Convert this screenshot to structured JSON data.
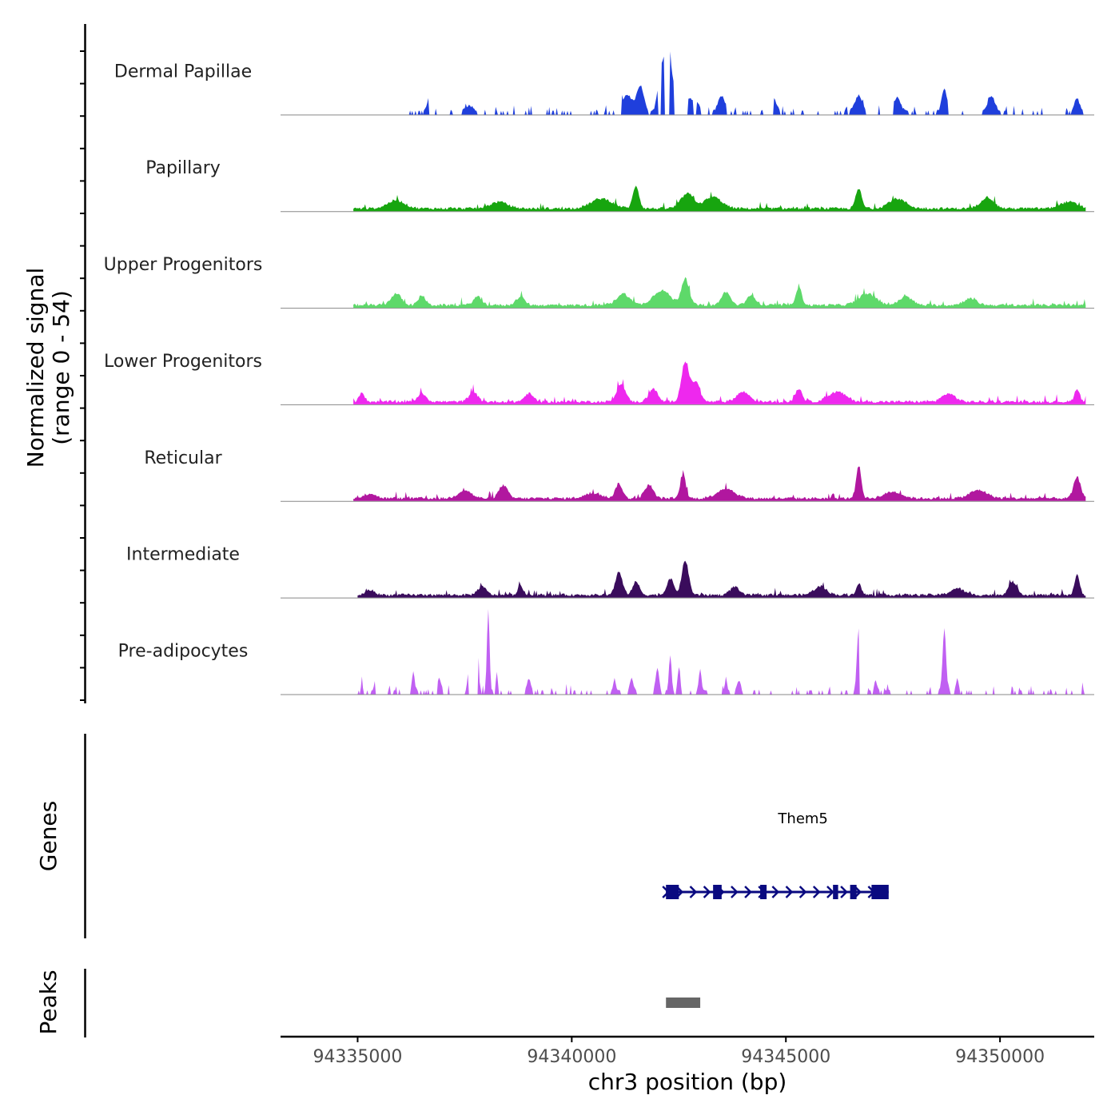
{
  "chart_data": {
    "type": "area",
    "ylabel_line1": "Normalized signal",
    "ylabel_line2": "(range 0 - 54)",
    "y_range": [
      0,
      54
    ],
    "xlabel": "chr3 position (bp)",
    "x_range": [
      94333200,
      94352200
    ],
    "x_ticks": [
      94335000,
      94340000,
      94345000,
      94350000
    ],
    "x_tick_labels": [
      "94335000",
      "94340000",
      "94345000",
      "94350000"
    ],
    "series": [
      {
        "name": "Dermal Papillae",
        "color": "#1f3fdc",
        "signal_start": 94336200,
        "signal_end": 94352000,
        "sparse": 0.45,
        "peaks": [
          [
            94336700,
            12,
            60
          ],
          [
            94337600,
            4,
            90
          ],
          [
            94341300,
            10,
            120
          ],
          [
            94341600,
            16,
            80
          ],
          [
            94342100,
            28,
            80
          ],
          [
            94342250,
            36,
            60
          ],
          [
            94342400,
            14,
            120
          ],
          [
            94342800,
            8,
            150
          ],
          [
            94343500,
            10,
            80
          ],
          [
            94344700,
            8,
            80
          ],
          [
            94346700,
            10,
            90
          ],
          [
            94347600,
            9,
            80
          ],
          [
            94348700,
            14,
            60
          ],
          [
            94349800,
            10,
            80
          ],
          [
            94351800,
            8,
            60
          ]
        ]
      },
      {
        "name": "Papillary",
        "color": "#17a50f",
        "signal_start": 94334900,
        "signal_end": 94352000,
        "sparse": 0,
        "peaks": [
          [
            94335900,
            5,
            200
          ],
          [
            94338300,
            4,
            200
          ],
          [
            94340700,
            6,
            250
          ],
          [
            94341500,
            14,
            70
          ],
          [
            94342700,
            9,
            150
          ],
          [
            94343300,
            7,
            200
          ],
          [
            94346700,
            12,
            70
          ],
          [
            94347600,
            6,
            200
          ],
          [
            94349700,
            7,
            150
          ],
          [
            94351600,
            4,
            200
          ]
        ]
      },
      {
        "name": "Upper Progenitors",
        "color": "#5ed96a",
        "signal_start": 94334900,
        "signal_end": 94352000,
        "sparse": 0,
        "peaks": [
          [
            94335900,
            7,
            120
          ],
          [
            94336500,
            6,
            80
          ],
          [
            94337800,
            5,
            100
          ],
          [
            94338800,
            5,
            100
          ],
          [
            94341200,
            7,
            150
          ],
          [
            94342100,
            9,
            200
          ],
          [
            94342650,
            16,
            90
          ],
          [
            94343600,
            8,
            100
          ],
          [
            94344200,
            6,
            100
          ],
          [
            94345300,
            11,
            70
          ],
          [
            94346900,
            7,
            200
          ],
          [
            94347800,
            5,
            150
          ],
          [
            94349300,
            4,
            150
          ]
        ]
      },
      {
        "name": "Lower Progenitors",
        "color": "#ee28ee",
        "signal_start": 94334900,
        "signal_end": 94352000,
        "sparse": 0,
        "peaks": [
          [
            94335100,
            6,
            60
          ],
          [
            94336500,
            5,
            100
          ],
          [
            94337700,
            6,
            100
          ],
          [
            94339000,
            5,
            100
          ],
          [
            94341150,
            11,
            100
          ],
          [
            94341900,
            8,
            100
          ],
          [
            94342650,
            24,
            90
          ],
          [
            94342900,
            12,
            90
          ],
          [
            94344000,
            6,
            150
          ],
          [
            94345300,
            8,
            80
          ],
          [
            94346200,
            6,
            200
          ],
          [
            94348800,
            5,
            150
          ],
          [
            94351800,
            8,
            60
          ]
        ]
      },
      {
        "name": "Reticular",
        "color": "#b1179f",
        "signal_start": 94334900,
        "signal_end": 94352000,
        "sparse": 0,
        "peaks": [
          [
            94335300,
            3,
            120
          ],
          [
            94337500,
            5,
            150
          ],
          [
            94338400,
            8,
            100
          ],
          [
            94340500,
            3,
            200
          ],
          [
            94341100,
            9,
            80
          ],
          [
            94341800,
            8,
            100
          ],
          [
            94342600,
            15,
            60
          ],
          [
            94343600,
            6,
            200
          ],
          [
            94346700,
            20,
            60
          ],
          [
            94347500,
            4,
            200
          ],
          [
            94349500,
            5,
            200
          ],
          [
            94351800,
            13,
            80
          ]
        ]
      },
      {
        "name": "Intermediate",
        "color": "#3a0c5c",
        "signal_start": 94335000,
        "signal_end": 94352000,
        "sparse": 0,
        "peaks": [
          [
            94335300,
            3,
            100
          ],
          [
            94337900,
            5,
            100
          ],
          [
            94338800,
            6,
            60
          ],
          [
            94341100,
            14,
            80
          ],
          [
            94341500,
            8,
            80
          ],
          [
            94342300,
            10,
            80
          ],
          [
            94342650,
            21,
            80
          ],
          [
            94343800,
            5,
            100
          ],
          [
            94346700,
            7,
            60
          ],
          [
            94345800,
            5,
            150
          ],
          [
            94349000,
            4,
            150
          ],
          [
            94350300,
            8,
            100
          ],
          [
            94351800,
            12,
            60
          ]
        ]
      },
      {
        "name": "Pre-adipocytes",
        "color": "#c060f2",
        "signal_start": 94335000,
        "signal_end": 94352000,
        "sparse": 0.2,
        "peaks": [
          [
            94335100,
            6,
            20
          ],
          [
            94335400,
            6,
            20
          ],
          [
            94336300,
            12,
            30
          ],
          [
            94336900,
            8,
            50
          ],
          [
            94337600,
            16,
            30
          ],
          [
            94337800,
            23,
            30
          ],
          [
            94338050,
            50,
            30
          ],
          [
            94338250,
            12,
            20
          ],
          [
            94339000,
            8,
            40
          ],
          [
            94341000,
            8,
            30
          ],
          [
            94341400,
            8,
            40
          ],
          [
            94342000,
            14,
            40
          ],
          [
            94342300,
            22,
            30
          ],
          [
            94342500,
            14,
            30
          ],
          [
            94342700,
            22,
            30
          ],
          [
            94343000,
            14,
            30
          ],
          [
            94343600,
            7,
            30
          ],
          [
            94343900,
            7,
            40
          ],
          [
            94346700,
            38,
            40
          ],
          [
            94347100,
            7,
            30
          ],
          [
            94347600,
            7,
            30
          ],
          [
            94348700,
            38,
            40
          ],
          [
            94349000,
            8,
            30
          ],
          [
            94351900,
            7,
            30
          ]
        ]
      }
    ],
    "gene_track": {
      "label": "Genes",
      "gene_name": "Them5",
      "start": 94342200,
      "end": 94347400,
      "strand": "+",
      "exons": [
        [
          94342200,
          94342500
        ],
        [
          94343300,
          94343500
        ],
        [
          94344400,
          94344550
        ],
        [
          94346100,
          94346220
        ],
        [
          94346500,
          94346650
        ],
        [
          94347000,
          94347400
        ]
      ]
    },
    "peak_track": {
      "label": "Peaks",
      "peaks": [
        [
          94342200,
          94343000
        ]
      ]
    }
  }
}
